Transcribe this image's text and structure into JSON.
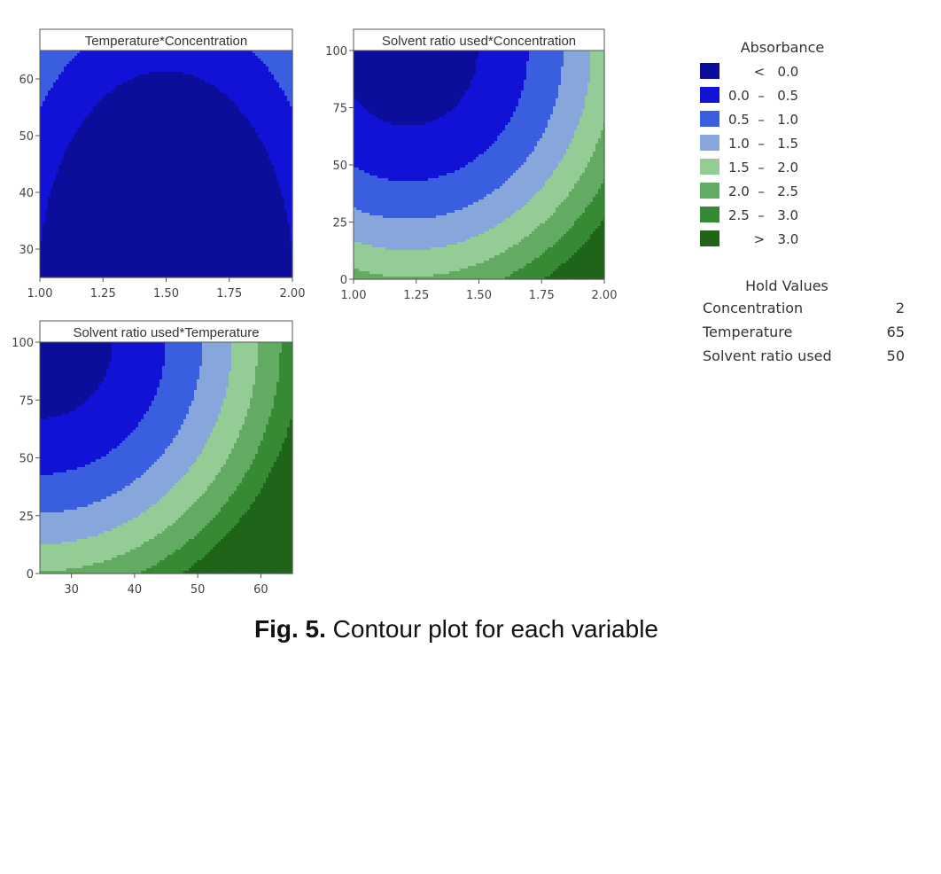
{
  "chart_data": [
    {
      "type": "contour",
      "title": "Temperature*Concentration",
      "x": {
        "min": 1.0,
        "max": 2.0,
        "ticks": [
          "1.00",
          "1.25",
          "1.50",
          "1.75",
          "2.00"
        ],
        "tick_values": [
          1.0,
          1.25,
          1.5,
          1.75,
          2.0
        ]
      },
      "y": {
        "min": 25,
        "max": 65,
        "ticks": [
          "30",
          "40",
          "50",
          "60"
        ],
        "tick_values": [
          30,
          40,
          50,
          60
        ]
      },
      "surface": {
        "x0": 1.5,
        "y0": 25,
        "sx": 0.58,
        "sy": 42,
        "base": -0.75
      }
    },
    {
      "type": "contour",
      "title": "Solvent ratio used*Concentration",
      "x": {
        "min": 1.0,
        "max": 2.0,
        "ticks": [
          "1.00",
          "1.25",
          "1.50",
          "1.75",
          "2.00"
        ],
        "tick_values": [
          1.0,
          1.25,
          1.5,
          1.75,
          2.0
        ]
      },
      "y": {
        "min": 0,
        "max": 100,
        "ticks": [
          "0",
          "25",
          "50",
          "75",
          "100"
        ],
        "tick_values": [
          0,
          25,
          50,
          75,
          100
        ]
      },
      "surface": {
        "x0": 1.22,
        "y0": 100,
        "sx": 0.55,
        "sy": 66,
        "base": -0.25
      }
    },
    {
      "type": "contour",
      "title": "Solvent ratio used*Temperature",
      "x": {
        "min": 25,
        "max": 65,
        "ticks": [
          "30",
          "40",
          "50",
          "60"
        ],
        "tick_values": [
          30,
          40,
          50,
          60
        ]
      },
      "y": {
        "min": 0,
        "max": 100,
        "ticks": [
          "0",
          "25",
          "50",
          "75",
          "100"
        ],
        "tick_values": [
          0,
          25,
          50,
          75,
          100
        ]
      },
      "surface": {
        "x0": 25,
        "y0": 100,
        "sx": 23,
        "sy": 66,
        "base": -0.25
      }
    }
  ],
  "legend": {
    "title": "Absorbance",
    "items": [
      {
        "label": "      <   0.0",
        "color": "#0d0d9b"
      },
      {
        "label": "0.0  –   0.5",
        "color": "#1212d6"
      },
      {
        "label": "0.5  –   1.0",
        "color": "#3a5ee0"
      },
      {
        "label": "1.0  –   1.5",
        "color": "#86a6dc"
      },
      {
        "label": "1.5  –   2.0",
        "color": "#93cc95"
      },
      {
        "label": "2.0  –   2.5",
        "color": "#63aa62"
      },
      {
        "label": "2.5  –   3.0",
        "color": "#378a34"
      },
      {
        "label": "      >   3.0",
        "color": "#1f6418"
      }
    ],
    "breaks": [
      0.0,
      0.5,
      1.0,
      1.5,
      2.0,
      2.5,
      3.0
    ]
  },
  "hold_values": {
    "title": "Hold Values",
    "rows": [
      {
        "label": "Concentration",
        "value": "2"
      },
      {
        "label": "Temperature",
        "value": "65"
      },
      {
        "label": "Solvent ratio used",
        "value": "50"
      }
    ]
  },
  "caption": {
    "prefix": "Fig. 5.",
    "text": " Contour plot for each variable"
  }
}
